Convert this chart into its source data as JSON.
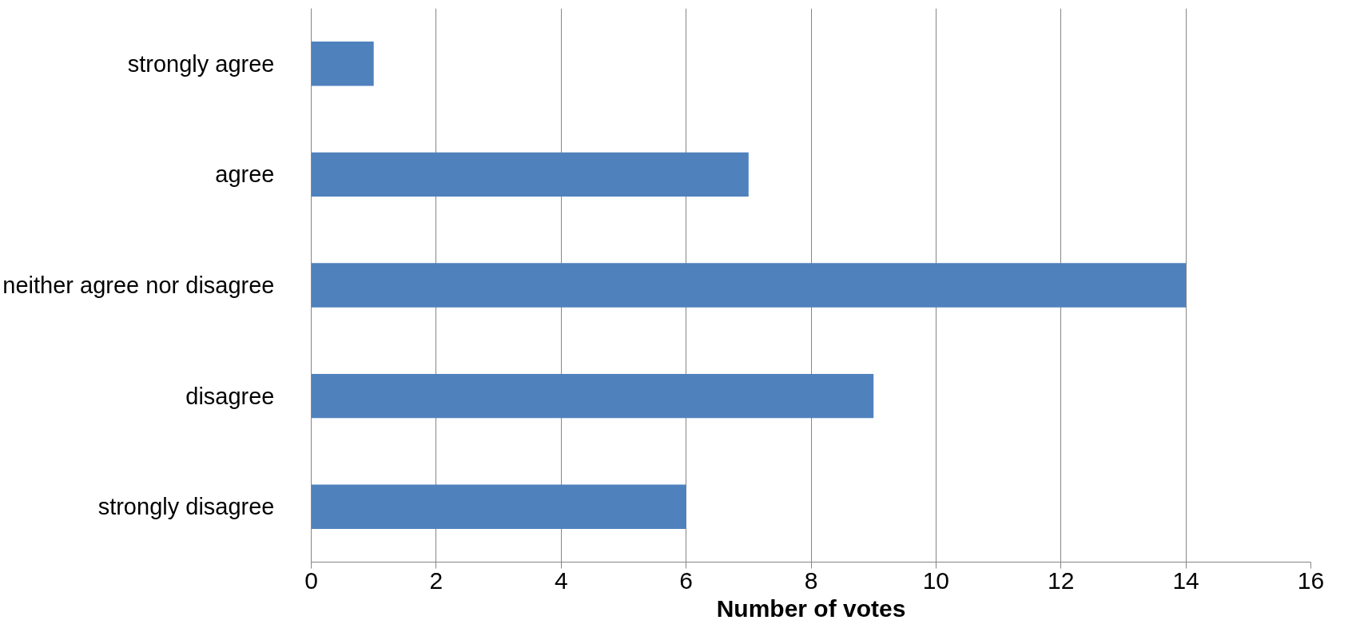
{
  "chart_data": {
    "type": "bar",
    "orientation": "horizontal",
    "xlabel": "Number of votes",
    "categories": [
      "strongly agree",
      "agree",
      "neither agree nor disagree",
      "disagree",
      "strongly disagree"
    ],
    "values": [
      1,
      7,
      14,
      9,
      6
    ],
    "color": "#4f81bd",
    "xlim": [
      0,
      16
    ],
    "xticks": [
      0,
      2,
      4,
      6,
      8,
      10,
      12,
      14,
      16
    ],
    "grid": "x"
  }
}
